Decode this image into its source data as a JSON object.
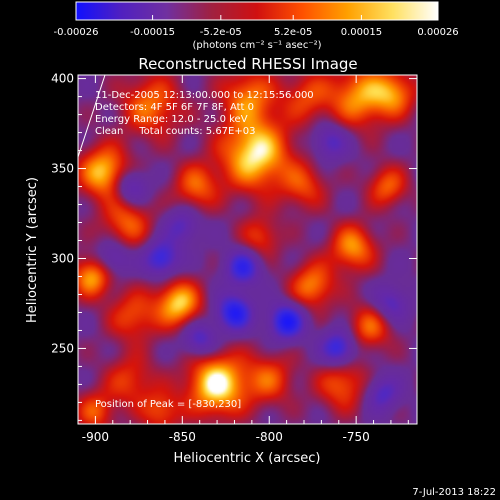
{
  "colorbar": {
    "ticks": [
      "-0.00026",
      "-0.00015",
      "-5.2e-05",
      "5.2e-05",
      "0.00015",
      "0.00026"
    ],
    "tick_values": [
      -0.00026,
      -0.00015,
      -5.2e-05,
      5.2e-05,
      0.00015,
      0.00026
    ],
    "range": [
      -0.00026,
      0.00026
    ],
    "units": "(photons cm⁻² s⁻¹ asec⁻²)",
    "colors": [
      "#1010ff",
      "#5020c0",
      "#7030a0",
      "#a02040",
      "#d01010",
      "#ff5000",
      "#ffa000",
      "#ffe060",
      "#ffffff"
    ]
  },
  "chart_data": {
    "type": "heatmap",
    "title": "Reconstructed RHESSI Image",
    "xlabel": "Heliocentric X (arcsec)",
    "ylabel": "Heliocentric Y (arcsec)",
    "xlim": [
      -910,
      -715
    ],
    "ylim": [
      208,
      402
    ],
    "xticks": [
      -900,
      -850,
      -800,
      -750
    ],
    "xtick_labels": [
      "-900",
      "-850",
      "-800",
      "-750"
    ],
    "yticks": [
      250,
      300,
      350,
      400
    ],
    "ytick_labels": [
      "250",
      "300",
      "350",
      "400"
    ],
    "annotations": [
      "11-Dec-2005 12:13:00.000 to 12:15:56.000",
      "Detectors: 4F 5F 6F 7F 8F, Att 0",
      "Energy Range: 12.0 - 25.0 keV",
      "Clean     Total counts: 5.67E+03"
    ],
    "peak_label": "Position of Peak = [-830,230]",
    "peak": {
      "x": -830,
      "y": 230
    },
    "blobs": [
      {
        "x": -830,
        "y": 230,
        "v": 1.0,
        "r": 12
      },
      {
        "x": -808,
        "y": 358,
        "v": 0.95,
        "r": 14
      },
      {
        "x": -895,
        "y": 348,
        "v": 0.85,
        "r": 10
      },
      {
        "x": -868,
        "y": 385,
        "v": 0.6,
        "r": 12
      },
      {
        "x": -812,
        "y": 390,
        "v": 0.6,
        "r": 11
      },
      {
        "x": -748,
        "y": 390,
        "v": 0.7,
        "r": 12
      },
      {
        "x": -728,
        "y": 392,
        "v": 0.6,
        "r": 9
      },
      {
        "x": -778,
        "y": 390,
        "v": 0.45,
        "r": 10
      },
      {
        "x": -882,
        "y": 320,
        "v": 0.55,
        "r": 10
      },
      {
        "x": -902,
        "y": 290,
        "v": 0.75,
        "r": 8
      },
      {
        "x": -878,
        "y": 268,
        "v": 0.5,
        "r": 10
      },
      {
        "x": -852,
        "y": 275,
        "v": 0.85,
        "r": 9
      },
      {
        "x": -842,
        "y": 340,
        "v": 0.55,
        "r": 9
      },
      {
        "x": -780,
        "y": 340,
        "v": 0.45,
        "r": 9
      },
      {
        "x": -775,
        "y": 285,
        "v": 0.65,
        "r": 9
      },
      {
        "x": -758,
        "y": 230,
        "v": 0.55,
        "r": 10
      },
      {
        "x": -752,
        "y": 306,
        "v": 0.7,
        "r": 9
      },
      {
        "x": -732,
        "y": 340,
        "v": 0.55,
        "r": 8
      },
      {
        "x": -800,
        "y": 233,
        "v": 0.5,
        "r": 10
      },
      {
        "x": -880,
        "y": 232,
        "v": 0.45,
        "r": 10
      },
      {
        "x": -900,
        "y": 215,
        "v": 0.5,
        "r": 8
      },
      {
        "x": -805,
        "y": 312,
        "v": 0.45,
        "r": 8
      },
      {
        "x": -742,
        "y": 262,
        "v": 0.55,
        "r": 9
      },
      {
        "x": -862,
        "y": 215,
        "v": 0.5,
        "r": 8
      },
      {
        "x": -820,
        "y": 270,
        "v": -0.85,
        "r": 7
      },
      {
        "x": -862,
        "y": 300,
        "v": -0.7,
        "r": 7
      },
      {
        "x": -790,
        "y": 265,
        "v": -0.9,
        "r": 7
      },
      {
        "x": -815,
        "y": 295,
        "v": -0.7,
        "r": 7
      },
      {
        "x": -760,
        "y": 250,
        "v": -0.75,
        "r": 7
      },
      {
        "x": -880,
        "y": 340,
        "v": -0.55,
        "r": 7
      },
      {
        "x": -735,
        "y": 225,
        "v": -0.5,
        "r": 7
      },
      {
        "x": -840,
        "y": 255,
        "v": -0.55,
        "r": 7
      },
      {
        "x": -765,
        "y": 365,
        "v": -0.5,
        "r": 7
      },
      {
        "x": -890,
        "y": 300,
        "v": -0.45,
        "r": 7
      },
      {
        "x": -850,
        "y": 318,
        "v": -0.45,
        "r": 7
      },
      {
        "x": -730,
        "y": 275,
        "v": -0.5,
        "r": 7
      }
    ]
  },
  "footer": {
    "timestamp": "7-Jul-2013 18:22"
  }
}
